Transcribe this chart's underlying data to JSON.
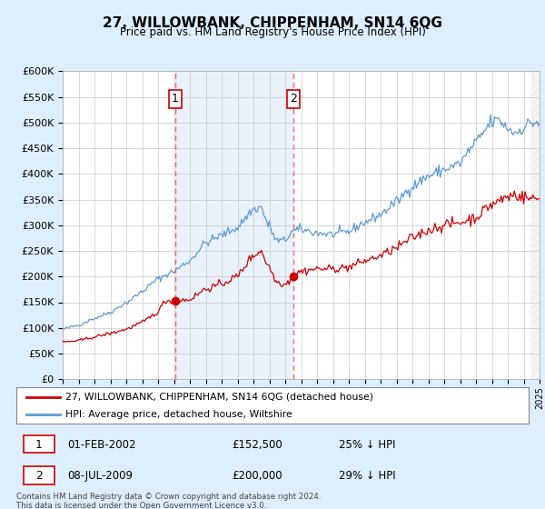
{
  "title": "27, WILLOWBANK, CHIPPENHAM, SN14 6QG",
  "subtitle": "Price paid vs. HM Land Registry's House Price Index (HPI)",
  "legend_line1": "27, WILLOWBANK, CHIPPENHAM, SN14 6QG (detached house)",
  "legend_line2": "HPI: Average price, detached house, Wiltshire",
  "annotation1_date": "01-FEB-2002",
  "annotation1_price": "£152,500",
  "annotation1_hpi": "25% ↓ HPI",
  "annotation2_date": "08-JUL-2009",
  "annotation2_price": "£200,000",
  "annotation2_hpi": "29% ↓ HPI",
  "footer": "Contains HM Land Registry data © Crown copyright and database right 2024.\nThis data is licensed under the Open Government Licence v3.0.",
  "hpi_color": "#5b9bd5",
  "price_color": "#cc0000",
  "vline_color": "#ff6666",
  "shade_color": "#ddeeff",
  "background_color": "#ddeeff",
  "plot_bg_color": "#ffffff",
  "ylim": [
    0,
    600000
  ],
  "yticks": [
    0,
    50000,
    100000,
    150000,
    200000,
    250000,
    300000,
    350000,
    400000,
    450000,
    500000,
    550000,
    600000
  ],
  "marker1_x": 2002.08,
  "marker1_y": 152500,
  "marker2_x": 2009.5,
  "marker2_y": 200000,
  "vline1_x": 2002.08,
  "vline2_x": 2009.5,
  "xmin": 1995,
  "xmax": 2025
}
